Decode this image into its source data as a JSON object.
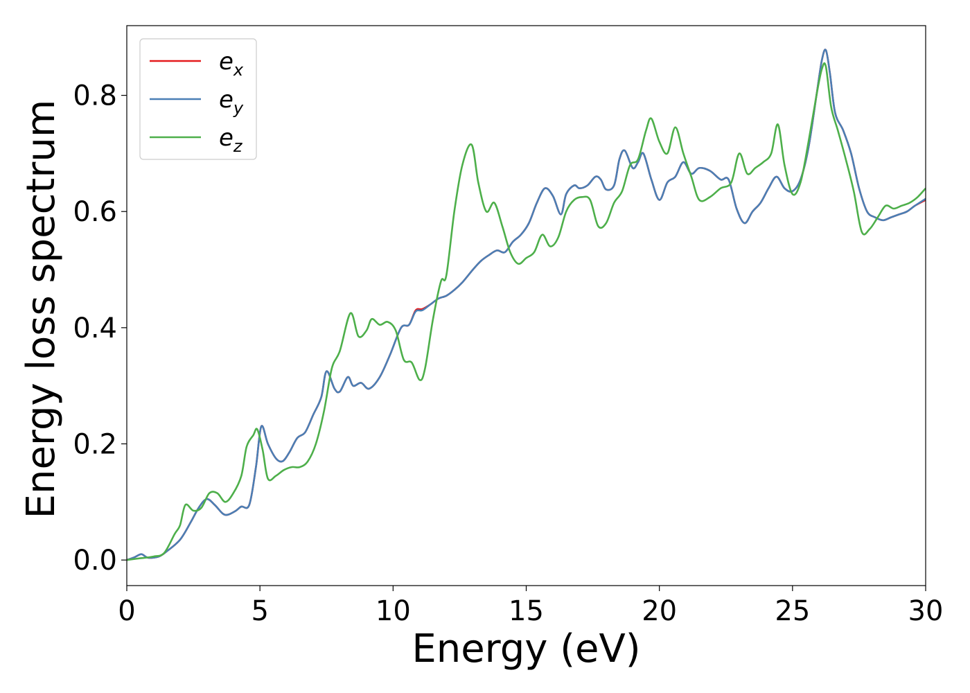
{
  "chart_data": {
    "type": "line",
    "xlabel": "Energy (eV)",
    "ylabel": "Energy loss spectrum",
    "xlim": [
      0,
      30
    ],
    "ylim": [
      -0.044,
      0.92
    ],
    "x_ticks": [
      0,
      5,
      10,
      15,
      20,
      25,
      30
    ],
    "x_tick_labels": [
      "0",
      "5",
      "10",
      "15",
      "20",
      "25",
      "30"
    ],
    "y_ticks": [
      0.0,
      0.2,
      0.4,
      0.6,
      0.8
    ],
    "y_tick_labels": [
      "0.0",
      "0.2",
      "0.4",
      "0.6",
      "0.8"
    ],
    "grid": false,
    "legend_position": "top-left",
    "colors": {
      "ex": "#e41a1c",
      "ey": "#4a7fb5",
      "ez": "#4daf4a"
    },
    "series": [
      {
        "key": "ex",
        "legend_base": "e",
        "legend_sub": "x",
        "color": "#e41a1c",
        "x": [
          0,
          0.3,
          0.55,
          0.8,
          1.2,
          1.5,
          2.0,
          2.4,
          2.7,
          3.0,
          3.3,
          3.6,
          3.8,
          4.1,
          4.3,
          4.6,
          4.85,
          5.05,
          5.3,
          5.6,
          5.85,
          6.1,
          6.4,
          6.7,
          7.0,
          7.3,
          7.5,
          7.8,
          8.0,
          8.3,
          8.5,
          8.8,
          9.1,
          9.5,
          9.9,
          10.3,
          10.6,
          10.85,
          11.1,
          11.4,
          11.7,
          12.0,
          12.3,
          12.6,
          13.0,
          13.3,
          13.6,
          13.9,
          14.2,
          14.5,
          14.8,
          15.1,
          15.4,
          15.7,
          16.0,
          16.3,
          16.5,
          16.8,
          17.0,
          17.3,
          17.6,
          17.8,
          18.0,
          18.3,
          18.5,
          18.7,
          19.0,
          19.2,
          19.4,
          19.7,
          20.0,
          20.3,
          20.6,
          20.9,
          21.2,
          21.5,
          21.9,
          22.3,
          22.6,
          22.9,
          23.2,
          23.5,
          23.8,
          24.1,
          24.4,
          24.7,
          25.0,
          25.3,
          25.6,
          25.9,
          26.1,
          26.25,
          26.4,
          26.6,
          26.9,
          27.2,
          27.5,
          27.8,
          28.1,
          28.4,
          28.7,
          29.0,
          29.3,
          29.6,
          30.0
        ],
        "y": [
          0.0,
          0.005,
          0.01,
          0.004,
          0.006,
          0.015,
          0.035,
          0.065,
          0.09,
          0.105,
          0.095,
          0.08,
          0.078,
          0.085,
          0.092,
          0.095,
          0.16,
          0.23,
          0.2,
          0.175,
          0.17,
          0.185,
          0.21,
          0.22,
          0.25,
          0.28,
          0.325,
          0.295,
          0.29,
          0.315,
          0.3,
          0.305,
          0.295,
          0.315,
          0.355,
          0.4,
          0.405,
          0.43,
          0.432,
          0.44,
          0.45,
          0.455,
          0.465,
          0.478,
          0.5,
          0.515,
          0.525,
          0.533,
          0.53,
          0.548,
          0.56,
          0.58,
          0.615,
          0.64,
          0.627,
          0.595,
          0.63,
          0.645,
          0.64,
          0.645,
          0.66,
          0.655,
          0.638,
          0.645,
          0.69,
          0.705,
          0.675,
          0.685,
          0.7,
          0.655,
          0.62,
          0.65,
          0.66,
          0.685,
          0.665,
          0.675,
          0.67,
          0.655,
          0.655,
          0.605,
          0.58,
          0.6,
          0.615,
          0.64,
          0.66,
          0.64,
          0.635,
          0.655,
          0.71,
          0.8,
          0.86,
          0.878,
          0.84,
          0.77,
          0.74,
          0.7,
          0.64,
          0.6,
          0.59,
          0.585,
          0.59,
          0.595,
          0.6,
          0.61,
          0.62
        ]
      },
      {
        "key": "ey",
        "legend_base": "e",
        "legend_sub": "y",
        "color": "#4a7fb5",
        "x": [
          0,
          0.3,
          0.55,
          0.8,
          1.2,
          1.5,
          2.0,
          2.4,
          2.7,
          3.0,
          3.3,
          3.6,
          3.8,
          4.1,
          4.3,
          4.6,
          4.85,
          5.05,
          5.3,
          5.6,
          5.85,
          6.1,
          6.4,
          6.7,
          7.0,
          7.3,
          7.5,
          7.8,
          8.0,
          8.3,
          8.5,
          8.8,
          9.1,
          9.5,
          9.9,
          10.3,
          10.6,
          10.85,
          11.1,
          11.4,
          11.7,
          12.0,
          12.3,
          12.6,
          13.0,
          13.3,
          13.6,
          13.9,
          14.2,
          14.5,
          14.8,
          15.1,
          15.4,
          15.7,
          16.0,
          16.3,
          16.5,
          16.8,
          17.0,
          17.3,
          17.6,
          17.8,
          18.0,
          18.3,
          18.5,
          18.7,
          19.0,
          19.2,
          19.4,
          19.7,
          20.0,
          20.3,
          20.6,
          20.9,
          21.2,
          21.5,
          21.9,
          22.3,
          22.6,
          22.9,
          23.2,
          23.5,
          23.8,
          24.1,
          24.4,
          24.7,
          25.0,
          25.3,
          25.6,
          25.9,
          26.1,
          26.25,
          26.4,
          26.6,
          26.9,
          27.2,
          27.5,
          27.8,
          28.1,
          28.4,
          28.7,
          29.0,
          29.3,
          29.6,
          30.0
        ],
        "y": [
          0.0,
          0.005,
          0.01,
          0.004,
          0.006,
          0.015,
          0.035,
          0.065,
          0.09,
          0.105,
          0.095,
          0.08,
          0.078,
          0.085,
          0.092,
          0.095,
          0.16,
          0.23,
          0.2,
          0.175,
          0.17,
          0.185,
          0.21,
          0.22,
          0.25,
          0.28,
          0.325,
          0.295,
          0.29,
          0.315,
          0.3,
          0.305,
          0.295,
          0.315,
          0.355,
          0.4,
          0.405,
          0.428,
          0.43,
          0.44,
          0.45,
          0.455,
          0.465,
          0.478,
          0.5,
          0.515,
          0.525,
          0.533,
          0.53,
          0.548,
          0.56,
          0.58,
          0.615,
          0.64,
          0.627,
          0.595,
          0.63,
          0.645,
          0.64,
          0.645,
          0.66,
          0.655,
          0.638,
          0.645,
          0.69,
          0.705,
          0.675,
          0.685,
          0.7,
          0.655,
          0.62,
          0.65,
          0.66,
          0.685,
          0.665,
          0.675,
          0.67,
          0.655,
          0.655,
          0.605,
          0.58,
          0.6,
          0.615,
          0.64,
          0.66,
          0.64,
          0.635,
          0.655,
          0.71,
          0.8,
          0.86,
          0.878,
          0.84,
          0.77,
          0.74,
          0.7,
          0.64,
          0.6,
          0.59,
          0.585,
          0.59,
          0.595,
          0.6,
          0.61,
          0.622
        ]
      },
      {
        "key": "ez",
        "legend_base": "e",
        "legend_sub": "z",
        "color": "#4daf4a",
        "x": [
          0,
          0.5,
          1.0,
          1.4,
          1.8,
          2.0,
          2.2,
          2.5,
          2.8,
          3.1,
          3.4,
          3.7,
          4.0,
          4.3,
          4.5,
          4.75,
          4.9,
          5.1,
          5.3,
          5.6,
          5.9,
          6.2,
          6.5,
          6.8,
          7.1,
          7.4,
          7.7,
          8.0,
          8.4,
          8.7,
          9.0,
          9.2,
          9.5,
          9.8,
          10.1,
          10.4,
          10.7,
          11.0,
          11.2,
          11.5,
          11.8,
          12.0,
          12.3,
          12.6,
          12.95,
          13.2,
          13.5,
          13.8,
          14.1,
          14.4,
          14.7,
          15.0,
          15.3,
          15.6,
          15.9,
          16.2,
          16.5,
          16.8,
          17.1,
          17.4,
          17.7,
          18.0,
          18.3,
          18.6,
          18.9,
          19.2,
          19.5,
          19.7,
          20.0,
          20.3,
          20.6,
          20.9,
          21.2,
          21.5,
          21.9,
          22.3,
          22.7,
          23.0,
          23.3,
          23.6,
          23.9,
          24.2,
          24.45,
          24.7,
          25.0,
          25.3,
          25.6,
          25.9,
          26.1,
          26.25,
          26.45,
          26.7,
          27.0,
          27.3,
          27.6,
          27.9,
          28.2,
          28.5,
          28.8,
          29.1,
          29.4,
          29.7,
          30.0
        ],
        "y": [
          0.0,
          0.003,
          0.006,
          0.012,
          0.045,
          0.06,
          0.095,
          0.085,
          0.09,
          0.115,
          0.115,
          0.1,
          0.115,
          0.145,
          0.195,
          0.215,
          0.225,
          0.19,
          0.14,
          0.145,
          0.155,
          0.16,
          0.16,
          0.17,
          0.2,
          0.255,
          0.33,
          0.36,
          0.425,
          0.385,
          0.395,
          0.415,
          0.405,
          0.41,
          0.395,
          0.345,
          0.34,
          0.31,
          0.33,
          0.415,
          0.48,
          0.49,
          0.6,
          0.68,
          0.715,
          0.65,
          0.6,
          0.615,
          0.575,
          0.53,
          0.51,
          0.52,
          0.53,
          0.56,
          0.54,
          0.555,
          0.6,
          0.62,
          0.625,
          0.62,
          0.575,
          0.58,
          0.615,
          0.635,
          0.68,
          0.69,
          0.74,
          0.76,
          0.72,
          0.7,
          0.745,
          0.7,
          0.66,
          0.62,
          0.625,
          0.64,
          0.65,
          0.7,
          0.665,
          0.675,
          0.685,
          0.7,
          0.75,
          0.68,
          0.63,
          0.65,
          0.72,
          0.8,
          0.845,
          0.85,
          0.78,
          0.74,
          0.69,
          0.635,
          0.565,
          0.57,
          0.59,
          0.61,
          0.605,
          0.61,
          0.615,
          0.625,
          0.64
        ]
      }
    ]
  }
}
